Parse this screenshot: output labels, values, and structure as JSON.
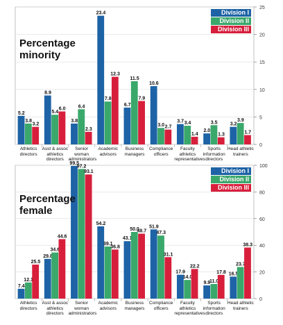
{
  "chart_data": [
    {
      "type": "bar",
      "title": "Percentage minority",
      "categories": [
        "Athletics directors",
        "Asst & assoc athletics directors",
        "Senior woman administrators",
        "Academic advisors",
        "Business managers",
        "Compliance officers",
        "Faculty athletics representatives",
        "Sports information directors",
        "Head athletic trainers"
      ],
      "series": [
        {
          "name": "Division I",
          "color": "#1d63a6",
          "values": [
            5.2,
            8.9,
            3.8,
            23.4,
            6.7,
            10.6,
            3.7,
            2.0,
            3.2
          ],
          "value_labels": [
            "5.2",
            "8.9",
            "3.8",
            "23.4",
            "6.7",
            "10.6",
            "3.7",
            "2.0",
            "3.2"
          ]
        },
        {
          "name": "Division II",
          "color": "#3aa86b",
          "values": [
            3.8,
            5.4,
            6.4,
            7.8,
            11.5,
            3.0,
            3.4,
            3.5,
            3.9
          ],
          "value_labels": [
            "3.8",
            "5.4",
            "6.4",
            "7.8",
            "11.5",
            "3.0",
            "3.4",
            "3.5",
            "3.9"
          ]
        },
        {
          "name": "Division III",
          "color": "#d71f3c",
          "values": [
            3.2,
            6.0,
            2.3,
            12.3,
            7.9,
            2.7,
            1.4,
            1.3,
            1.7
          ],
          "value_labels": [
            "3.2",
            "6.0",
            "2.3",
            "12.3",
            "7.9",
            "2.7",
            "1.4",
            "1.3",
            "1.7"
          ]
        }
      ],
      "ylim": [
        0,
        25
      ],
      "yticks": [
        0,
        5,
        10,
        15,
        20,
        25
      ],
      "grid": true,
      "legend": "top-right"
    },
    {
      "type": "bar",
      "title": "Percentage female",
      "categories": [
        "Athletics directors",
        "Asst & assoc athletics directors",
        "Senior woman administrators",
        "Academic advisors",
        "Business managers",
        "Compliance officers",
        "Faculty athletics representatives",
        "Sports information directors",
        "Head athletic trainers"
      ],
      "series": [
        {
          "name": "Division I",
          "color": "#1d63a6",
          "values": [
            7.4,
            29.8,
            99.5,
            54.2,
            43.1,
            51.9,
            17.9,
            9.9,
            16.5
          ],
          "value_labels": [
            "7.4",
            "29.8",
            "99.5",
            "54.2",
            "43.1",
            "51.9",
            "17.9",
            "9.9",
            "16.5"
          ]
        },
        {
          "name": "Division II",
          "color": "#3aa86b",
          "values": [
            12.1,
            34.6,
            97.2,
            39.1,
            50.0,
            47.3,
            14.0,
            11.0,
            23.7
          ],
          "value_labels": [
            "12.1",
            "34.6",
            "97.2",
            "39.1",
            "50.0",
            "47.3",
            "14.0",
            "11.0",
            "23.7"
          ]
        },
        {
          "name": "Division III",
          "color": "#d71f3c",
          "values": [
            25.5,
            44.6,
            93.1,
            36.8,
            48.7,
            31.1,
            22.2,
            17.8,
            38.3
          ],
          "value_labels": [
            "25.5",
            "44.6",
            "93.1",
            "36.8",
            "48.7",
            "31.1",
            "22.2",
            "17.8",
            "38.3"
          ]
        }
      ],
      "ylim": [
        0,
        100
      ],
      "yticks": [
        0,
        20,
        40,
        60,
        80,
        100
      ],
      "grid": true,
      "legend": "top-right"
    }
  ]
}
